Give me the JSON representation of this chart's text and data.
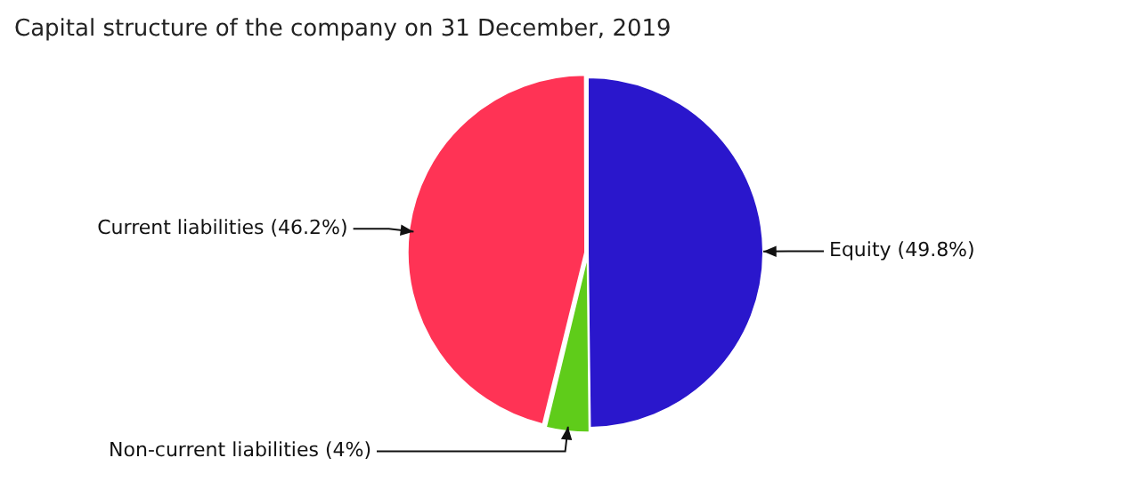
{
  "chart_data": {
    "type": "pie",
    "title": "Capital structure of the company on 31 December, 2019",
    "categories": [
      "Equity",
      "Non-current liabilities",
      "Current liabilities"
    ],
    "values": [
      49.8,
      4,
      46.2
    ],
    "value_labels": [
      "(49.8%)",
      "(4%)",
      "(46.2%)"
    ],
    "colors": [
      "#2a17cc",
      "#5fcc1a",
      "#ff3355"
    ],
    "legend": false
  }
}
